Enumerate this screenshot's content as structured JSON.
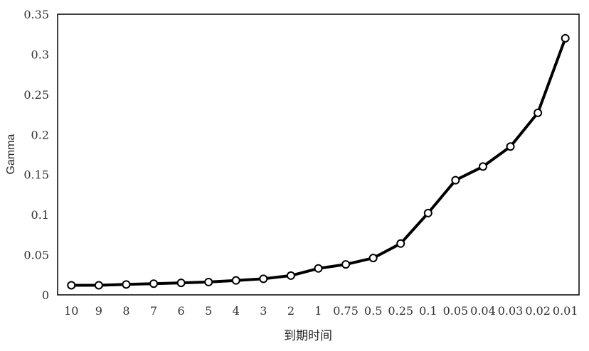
{
  "chart_data": {
    "type": "line",
    "title": "",
    "xlabel": "到期时间",
    "ylabel": "Gamma",
    "categories": [
      "10",
      "9",
      "8",
      "7",
      "6",
      "5",
      "4",
      "3",
      "2",
      "1",
      "0.75",
      "0.5",
      "0.25",
      "0.1",
      "0.05",
      "0.04",
      "0.03",
      "0.02",
      "0.01"
    ],
    "series": [
      {
        "values": [
          0.012,
          0.012,
          0.013,
          0.014,
          0.015,
          0.016,
          0.018,
          0.02,
          0.024,
          0.033,
          0.038,
          0.046,
          0.064,
          0.102,
          0.143,
          0.16,
          0.185,
          0.227,
          0.32
        ]
      }
    ],
    "ylim": [
      0,
      0.35
    ],
    "yticks": [
      "0",
      "0.05",
      "0.1",
      "0.15",
      "0.2",
      "0.25",
      "0.3",
      "0.35"
    ],
    "grid": false,
    "legend": "none",
    "line_color": "#000000",
    "marker_fill": "#ffffff"
  }
}
